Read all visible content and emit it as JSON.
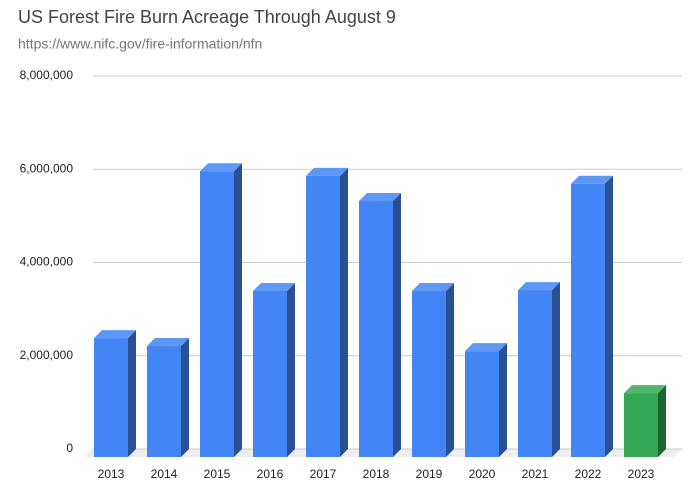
{
  "chart_data": {
    "type": "bar3d",
    "title": "US Forest Fire Burn Acreage Through August 9",
    "subtitle": "https://www.nifc.gov/fire-information/nfn",
    "categories": [
      "2013",
      "2014",
      "2015",
      "2016",
      "2017",
      "2018",
      "2019",
      "2020",
      "2021",
      "2022",
      "2023"
    ],
    "values": [
      2550000,
      2380000,
      6130000,
      3560000,
      6030000,
      5490000,
      3560000,
      2270000,
      3580000,
      5860000,
      1370000
    ],
    "colors": [
      "#4285f4",
      "#4285f4",
      "#4285f4",
      "#4285f4",
      "#4285f4",
      "#4285f4",
      "#4285f4",
      "#4285f4",
      "#4285f4",
      "#4285f4",
      "#34a853"
    ],
    "ylim": [
      0,
      8000000
    ],
    "yticks": [
      {
        "value": 0,
        "label": "0"
      },
      {
        "value": 2000000,
        "label": "2,000,000"
      },
      {
        "value": 4000000,
        "label": "4,000,000"
      },
      {
        "value": 6000000,
        "label": "6,000,000"
      },
      {
        "value": 8000000,
        "label": "8,000,000"
      }
    ],
    "grid": true
  }
}
